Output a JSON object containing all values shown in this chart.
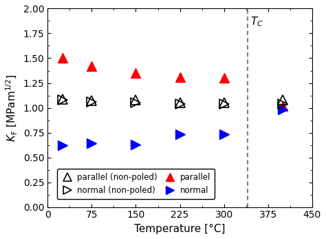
{
  "title": "",
  "xlabel": "Temperature [°C]",
  "ylabel": "$K_{\\mathrm{F}}$ [MPam$^{1/2}$]",
  "xlim": [
    0,
    450
  ],
  "ylim": [
    0.0,
    2.0
  ],
  "xticks": [
    0,
    75,
    150,
    225,
    300,
    375,
    450
  ],
  "yticks": [
    0.0,
    0.25,
    0.5,
    0.75,
    1.0,
    1.25,
    1.5,
    1.75,
    2.0
  ],
  "Tc_x": 340,
  "red_parallel": {
    "x": [
      25,
      75,
      150,
      225,
      300,
      400
    ],
    "y": [
      1.5,
      1.42,
      1.35,
      1.31,
      1.3,
      1.02
    ],
    "color": "red",
    "marker": "^",
    "filled": true
  },
  "blue_normal": {
    "x": [
      25,
      75,
      150,
      225,
      300,
      400
    ],
    "y": [
      0.62,
      0.64,
      0.63,
      0.73,
      0.73,
      0.98
    ],
    "color": "blue",
    "marker": ">",
    "filled": true
  },
  "black_parallel_np": {
    "x": [
      25,
      75,
      150,
      225,
      300,
      400
    ],
    "y": [
      1.09,
      1.07,
      1.08,
      1.05,
      1.05,
      1.08
    ],
    "color": "black",
    "marker": "^",
    "filled": false
  },
  "black_normal_np": {
    "x": [
      25,
      75,
      150,
      225,
      300,
      400
    ],
    "y": [
      1.08,
      1.06,
      1.05,
      1.04,
      1.04,
      1.04
    ],
    "color": "black",
    "marker": ">",
    "filled": false
  },
  "marker_size": 10,
  "linewidth": 0,
  "background_color": "#ffffff",
  "Tc_label": "$T_C$"
}
